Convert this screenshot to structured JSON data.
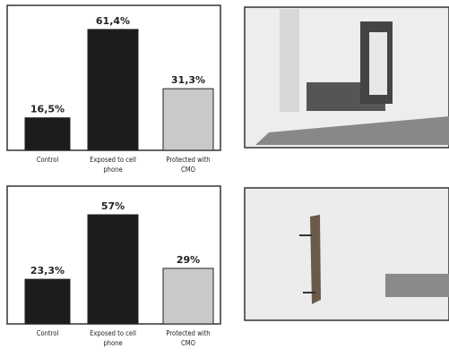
{
  "chart_data": [
    {
      "type": "bar",
      "categories": [
        "Control",
        "Exposed to cell phone",
        "Protected with CMO"
      ],
      "values": [
        16.5,
        61.4,
        31.3
      ],
      "value_labels": [
        "16,5%",
        "61,4%",
        "31,3%"
      ],
      "colors": [
        "#1c1c1c",
        "#1c1c1c",
        "#c9c9c9"
      ]
    },
    {
      "type": "bar",
      "categories": [
        "Control",
        "Exposed to cell phone",
        "Protected with CMO"
      ],
      "values": [
        23.3,
        57,
        29
      ],
      "value_labels": [
        "23,3%",
        "57%",
        "29%"
      ],
      "colors": [
        "#1c1c1c",
        "#1c1c1c",
        "#c9c9c9"
      ]
    }
  ]
}
